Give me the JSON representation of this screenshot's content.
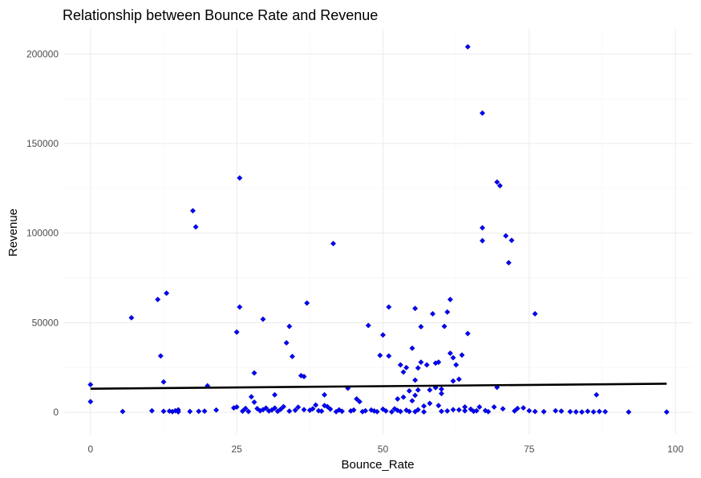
{
  "chart_data": {
    "type": "scatter",
    "title": "Relationship between Bounce Rate and Revenue",
    "xlabel": "Bounce_Rate",
    "ylabel": "Revenue",
    "xlim": [
      -4.5,
      103
    ],
    "ylim": [
      -12000,
      214000
    ],
    "x_ticks": [
      0,
      25,
      50,
      75,
      100
    ],
    "y_ticks": [
      0,
      50000,
      100000,
      150000,
      200000
    ],
    "x_tick_labels": [
      "0",
      "25",
      "50",
      "75",
      "100"
    ],
    "y_tick_labels": [
      "0",
      "50000",
      "100000",
      "150000",
      "200000"
    ],
    "grid": true,
    "point_color": "#0000FF",
    "trend_color": "#000000",
    "trend_line": {
      "x": [
        0,
        98.5
      ],
      "y": [
        13200,
        16000
      ]
    },
    "points": [
      [
        0,
        15500
      ],
      [
        0,
        6000
      ],
      [
        5.5,
        500
      ],
      [
        7,
        52800
      ],
      [
        10.5,
        900
      ],
      [
        11.5,
        63000
      ],
      [
        12,
        31500
      ],
      [
        12.5,
        17000
      ],
      [
        12.5,
        600
      ],
      [
        13,
        66500
      ],
      [
        13.5,
        700
      ],
      [
        14,
        400
      ],
      [
        14.5,
        900
      ],
      [
        15,
        1400
      ],
      [
        15,
        300
      ],
      [
        17,
        500
      ],
      [
        17.5,
        112500
      ],
      [
        18,
        103500
      ],
      [
        18.5,
        600
      ],
      [
        19.5,
        700
      ],
      [
        20,
        14800
      ],
      [
        21.5,
        1300
      ],
      [
        24.5,
        2500
      ],
      [
        25,
        44800
      ],
      [
        25,
        3000
      ],
      [
        25.5,
        58800
      ],
      [
        25.5,
        130800
      ],
      [
        26,
        700
      ],
      [
        26.5,
        2200
      ],
      [
        27,
        500
      ],
      [
        27.5,
        8700
      ],
      [
        28,
        22000
      ],
      [
        28,
        5700
      ],
      [
        28.5,
        2100
      ],
      [
        29,
        900
      ],
      [
        29.5,
        52000
      ],
      [
        29.5,
        1500
      ],
      [
        30,
        2400
      ],
      [
        30.5,
        800
      ],
      [
        31,
        1300
      ],
      [
        31.5,
        9800
      ],
      [
        31.5,
        2400
      ],
      [
        32,
        600
      ],
      [
        32.5,
        1700
      ],
      [
        33,
        3200
      ],
      [
        33.5,
        38800
      ],
      [
        34,
        48000
      ],
      [
        34,
        700
      ],
      [
        34.5,
        31200
      ],
      [
        35,
        1200
      ],
      [
        35.5,
        2900
      ],
      [
        36,
        20500
      ],
      [
        36.5,
        20000
      ],
      [
        36.5,
        1500
      ],
      [
        37,
        61000
      ],
      [
        37.5,
        1200
      ],
      [
        38,
        2000
      ],
      [
        38.5,
        4100
      ],
      [
        39,
        900
      ],
      [
        39.5,
        700
      ],
      [
        40,
        3800
      ],
      [
        40,
        9800
      ],
      [
        40.5,
        3200
      ],
      [
        41,
        1800
      ],
      [
        41.5,
        94200
      ],
      [
        42,
        400
      ],
      [
        42.5,
        1400
      ],
      [
        43,
        600
      ],
      [
        44,
        13500
      ],
      [
        44.5,
        800
      ],
      [
        45,
        1300
      ],
      [
        45.5,
        7500
      ],
      [
        46,
        6000
      ],
      [
        46.5,
        400
      ],
      [
        47,
        900
      ],
      [
        47.5,
        48500
      ],
      [
        48,
        1300
      ],
      [
        48.5,
        800
      ],
      [
        49,
        400
      ],
      [
        49.5,
        31800
      ],
      [
        50,
        43200
      ],
      [
        50,
        1800
      ],
      [
        50.5,
        800
      ],
      [
        51,
        31500
      ],
      [
        51,
        58800
      ],
      [
        51.5,
        300
      ],
      [
        52,
        2000
      ],
      [
        52.5,
        7500
      ],
      [
        52.5,
        1100
      ],
      [
        53,
        26500
      ],
      [
        53,
        500
      ],
      [
        53.5,
        22500
      ],
      [
        53.5,
        8500
      ],
      [
        54,
        25000
      ],
      [
        54,
        1200
      ],
      [
        54.5,
        12000
      ],
      [
        54.5,
        500
      ],
      [
        55,
        35800
      ],
      [
        55,
        6500
      ],
      [
        55.5,
        58000
      ],
      [
        55.5,
        18000
      ],
      [
        55.5,
        9500
      ],
      [
        55.5,
        400
      ],
      [
        56,
        24800
      ],
      [
        56,
        12500
      ],
      [
        56,
        1500
      ],
      [
        56.5,
        47800
      ],
      [
        56.5,
        28000
      ],
      [
        57,
        3500
      ],
      [
        57,
        300
      ],
      [
        57.5,
        26500
      ],
      [
        58,
        5000
      ],
      [
        58,
        12500
      ],
      [
        58.5,
        55000
      ],
      [
        59,
        27500
      ],
      [
        59,
        13800
      ],
      [
        59.5,
        28000
      ],
      [
        59.5,
        3800
      ],
      [
        60,
        10500
      ],
      [
        60,
        600
      ],
      [
        60,
        13000
      ],
      [
        60.5,
        48000
      ],
      [
        61,
        56000
      ],
      [
        61,
        800
      ],
      [
        61.5,
        63000
      ],
      [
        61.5,
        33000
      ],
      [
        62,
        30500
      ],
      [
        62,
        17500
      ],
      [
        62,
        1500
      ],
      [
        62.5,
        26500
      ],
      [
        63,
        18500
      ],
      [
        63,
        1400
      ],
      [
        63.5,
        32000
      ],
      [
        64,
        3000
      ],
      [
        64,
        900
      ],
      [
        64.5,
        204000
      ],
      [
        64.5,
        44000
      ],
      [
        65,
        1800
      ],
      [
        65.5,
        600
      ],
      [
        66,
        900
      ],
      [
        66.5,
        3000
      ],
      [
        67,
        167000
      ],
      [
        67,
        103000
      ],
      [
        67,
        95800
      ],
      [
        67.5,
        1000
      ],
      [
        68,
        400
      ],
      [
        69,
        3000
      ],
      [
        69.5,
        128500
      ],
      [
        69.5,
        14000
      ],
      [
        70,
        126500
      ],
      [
        70.5,
        2000
      ],
      [
        71,
        98500
      ],
      [
        71.5,
        83500
      ],
      [
        72,
        96000
      ],
      [
        72.5,
        800
      ],
      [
        73,
        2200
      ],
      [
        74,
        2500
      ],
      [
        75,
        900
      ],
      [
        76,
        55000
      ],
      [
        76,
        500
      ],
      [
        77.5,
        400
      ],
      [
        79.5,
        900
      ],
      [
        80.5,
        700
      ],
      [
        82,
        400
      ],
      [
        83,
        300
      ],
      [
        84,
        200
      ],
      [
        85,
        600
      ],
      [
        86,
        300
      ],
      [
        86.5,
        9800
      ],
      [
        87,
        500
      ],
      [
        88,
        400
      ],
      [
        92,
        200
      ],
      [
        98.5,
        200
      ]
    ]
  }
}
